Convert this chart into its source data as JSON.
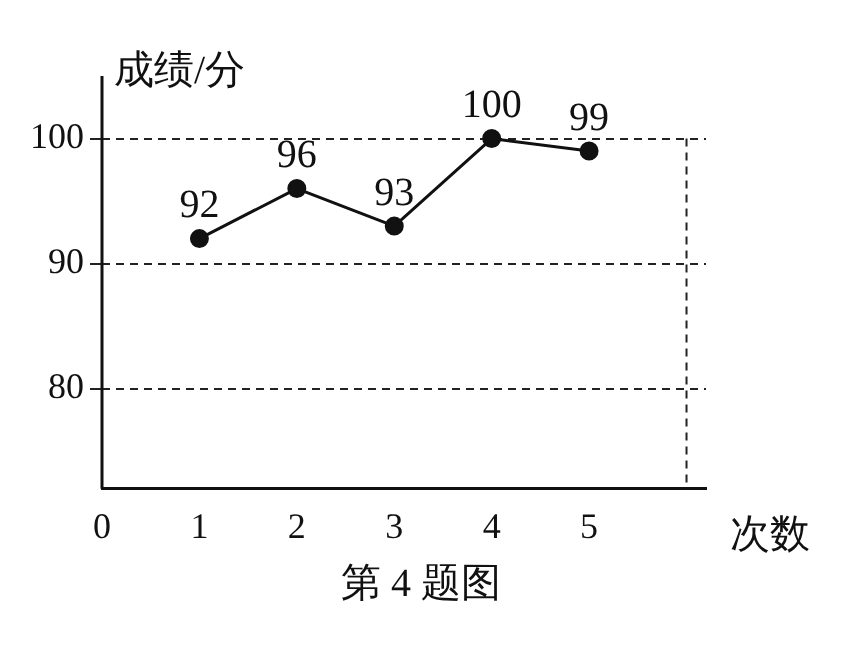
{
  "chart_data": {
    "type": "line",
    "xlabel": "次数",
    "ylabel": "成绩/分",
    "annotations": [
      "第 4 题图"
    ],
    "x": [
      1,
      2,
      3,
      4,
      5
    ],
    "values": [
      92,
      96,
      93,
      100,
      99
    ],
    "color": "#111111",
    "xlim": [
      0,
      6.2
    ],
    "xticks": [
      0,
      1,
      2,
      3,
      4,
      5
    ],
    "ylim": [
      72,
      105
    ],
    "yticks": [
      80,
      90,
      100
    ],
    "ref_lines": [
      {
        "axis": "x",
        "value": 6,
        "line_style": "dashed",
        "color": "#222222"
      }
    ],
    "grid": "y",
    "marker": "circle",
    "line_style": "solid",
    "data_labels": true,
    "legend": false
  }
}
